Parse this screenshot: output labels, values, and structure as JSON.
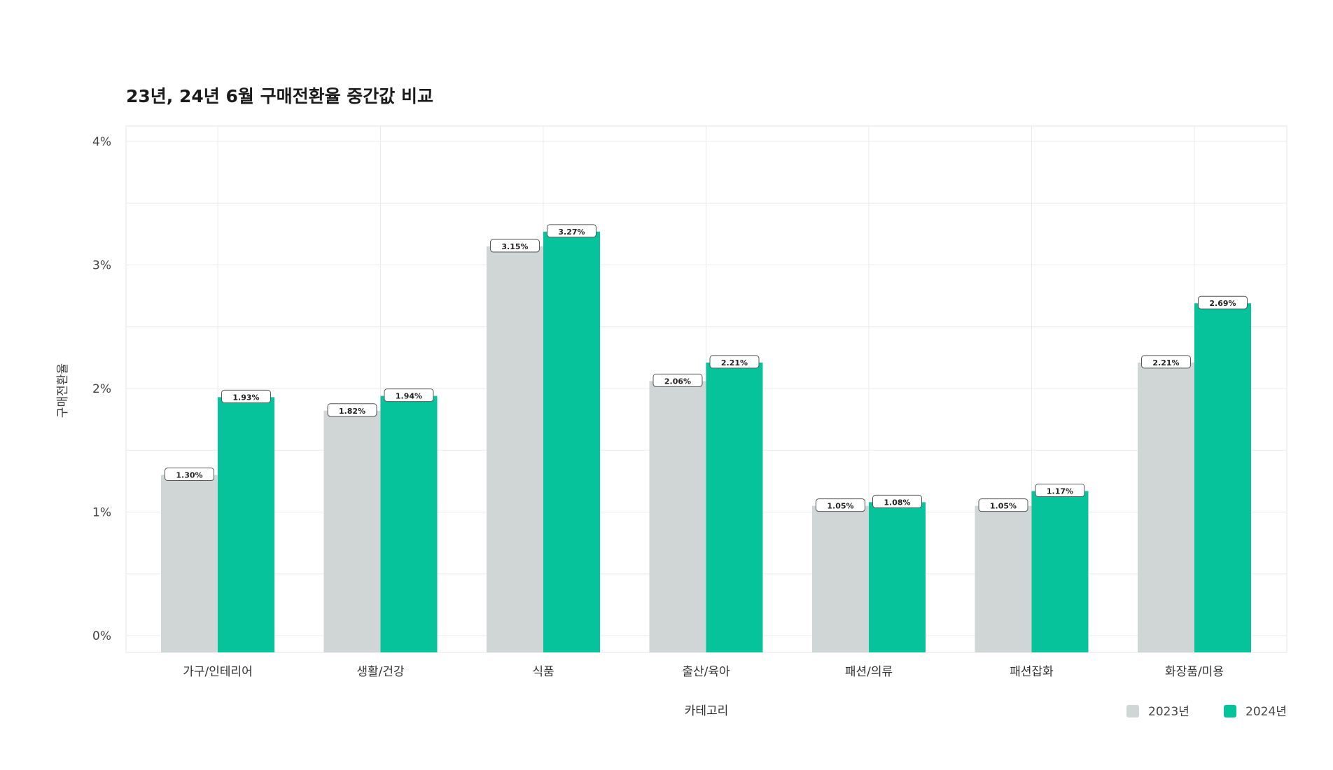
{
  "chart_data": {
    "type": "bar",
    "title": "23년, 24년 6월 구매전환율 중간값 비교",
    "xlabel": "카테고리",
    "ylabel": "구매전환율",
    "ylim": [
      0,
      4
    ],
    "yticks": [
      0,
      1,
      2,
      3,
      4
    ],
    "ytick_labels": [
      "0%",
      "1%",
      "2%",
      "3%",
      "4%"
    ],
    "grid": true,
    "legend_position": "bottom-right",
    "categories": [
      "가구/인테리어",
      "생활/건강",
      "식품",
      "출산/육아",
      "패션/의류",
      "패션잡화",
      "화장품/미용"
    ],
    "series": [
      {
        "name": "2023년",
        "color": "#d0d6d5",
        "values": [
          1.3,
          1.82,
          3.15,
          2.06,
          1.05,
          1.05,
          2.21
        ],
        "labels": [
          "1.30%",
          "1.82%",
          "3.15%",
          "2.06%",
          "1.05%",
          "1.05%",
          "2.21%"
        ]
      },
      {
        "name": "2024년",
        "color": "#07c39c",
        "values": [
          1.93,
          1.94,
          3.27,
          2.21,
          1.08,
          1.17,
          2.69
        ],
        "labels": [
          "1.93%",
          "1.94%",
          "3.27%",
          "2.21%",
          "1.08%",
          "1.17%",
          "2.69%"
        ]
      }
    ]
  }
}
